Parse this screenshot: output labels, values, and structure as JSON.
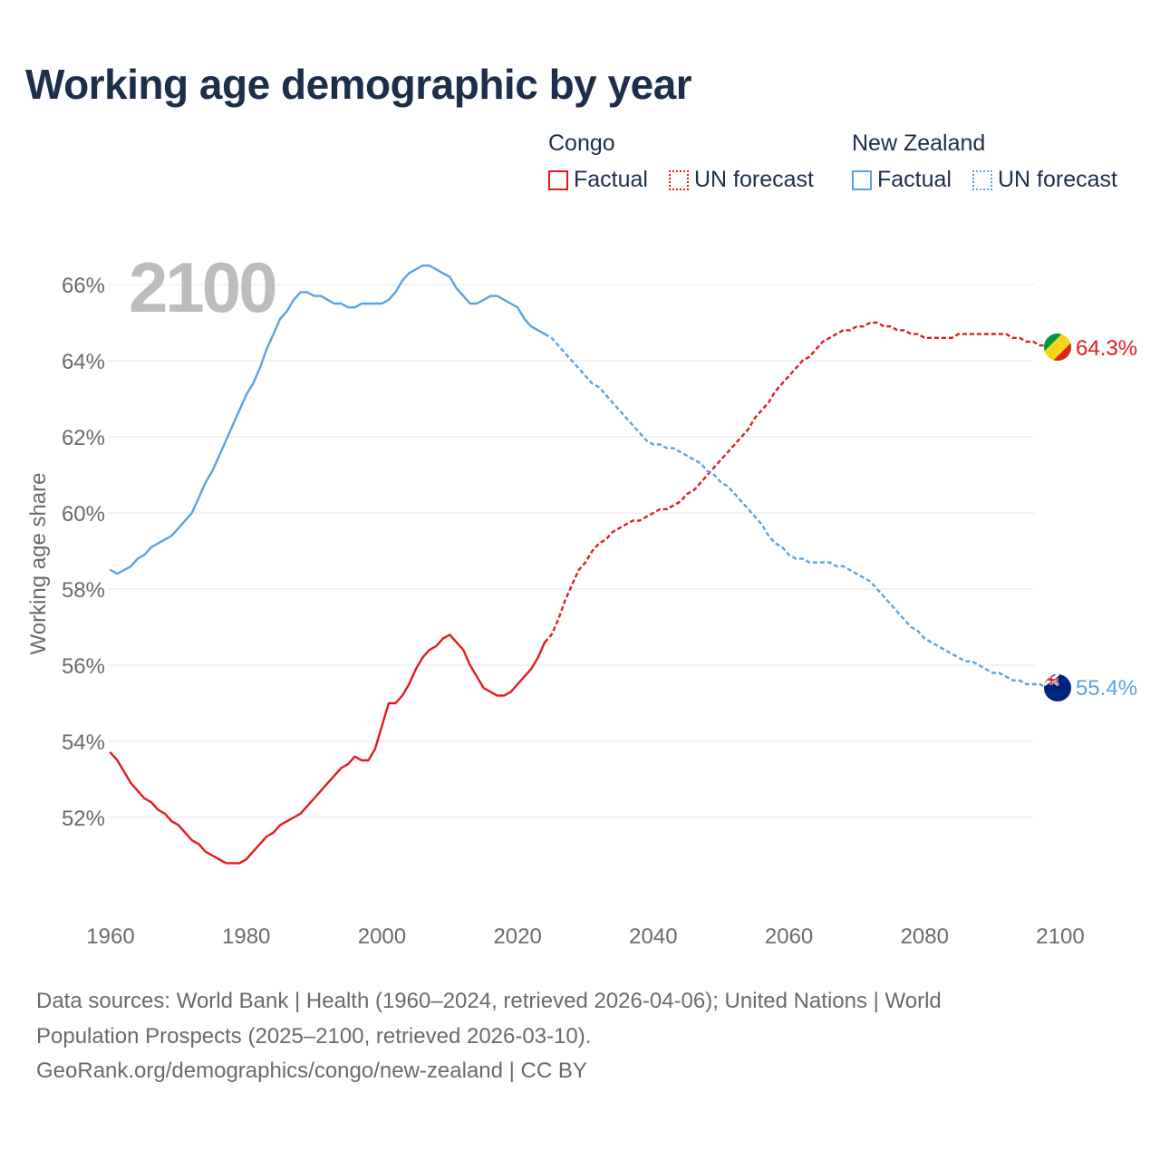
{
  "title": "Working age demographic by year",
  "legend": {
    "groups": [
      {
        "name": "Congo",
        "color": "#e31a1c",
        "items": [
          {
            "label": "Factual",
            "style": "solid"
          },
          {
            "label": "UN forecast",
            "style": "dotted"
          }
        ]
      },
      {
        "name": "New Zealand",
        "color": "#5aa3e0",
        "items": [
          {
            "label": "Factual",
            "style": "solid"
          },
          {
            "label": "UN forecast",
            "style": "dotted"
          }
        ]
      }
    ]
  },
  "year_label": "2100",
  "sources": {
    "line1": "Data sources: World Bank | Health (1960–2024, retrieved 2026-04-06); United Nations | World",
    "line2": "Population Prospects (2025–2100, retrieved 2026-03-10).",
    "line3": "GeoRank.org/demographics/congo/new-zealand | CC BY"
  },
  "chart_data": {
    "type": "line",
    "title": "Working age demographic by year",
    "xlabel": "",
    "ylabel": "Working age share",
    "xlim": [
      1960,
      2100
    ],
    "ylim": [
      50,
      67
    ],
    "x_ticks": [
      1960,
      1980,
      2000,
      2020,
      2040,
      2060,
      2080,
      2100
    ],
    "x_tick_labels": [
      "1960",
      "1980",
      "2000",
      "2020",
      "2040",
      "2060",
      "2080",
      "2100"
    ],
    "y_ticks": [
      52,
      54,
      56,
      58,
      60,
      62,
      64,
      66
    ],
    "y_tick_labels": [
      "52%",
      "54%",
      "56%",
      "58%",
      "60%",
      "62%",
      "64%",
      "66%"
    ],
    "grid": true,
    "factual_end_year": 2024,
    "series": [
      {
        "name": "Congo",
        "color": "#e31a1c",
        "end_label": "64.3%",
        "end_value": 64.3,
        "points": [
          [
            1960,
            53.7
          ],
          [
            1961,
            53.5
          ],
          [
            1962,
            53.2
          ],
          [
            1963,
            52.9
          ],
          [
            1964,
            52.7
          ],
          [
            1965,
            52.5
          ],
          [
            1966,
            52.4
          ],
          [
            1967,
            52.2
          ],
          [
            1968,
            52.1
          ],
          [
            1969,
            51.9
          ],
          [
            1970,
            51.8
          ],
          [
            1971,
            51.6
          ],
          [
            1972,
            51.4
          ],
          [
            1973,
            51.3
          ],
          [
            1974,
            51.1
          ],
          [
            1975,
            51.0
          ],
          [
            1976,
            50.9
          ],
          [
            1977,
            50.8
          ],
          [
            1978,
            50.8
          ],
          [
            1979,
            50.8
          ],
          [
            1980,
            50.9
          ],
          [
            1981,
            51.1
          ],
          [
            1982,
            51.3
          ],
          [
            1983,
            51.5
          ],
          [
            1984,
            51.6
          ],
          [
            1985,
            51.8
          ],
          [
            1986,
            51.9
          ],
          [
            1987,
            52.0
          ],
          [
            1988,
            52.1
          ],
          [
            1989,
            52.3
          ],
          [
            1990,
            52.5
          ],
          [
            1991,
            52.7
          ],
          [
            1992,
            52.9
          ],
          [
            1993,
            53.1
          ],
          [
            1994,
            53.3
          ],
          [
            1995,
            53.4
          ],
          [
            1996,
            53.6
          ],
          [
            1997,
            53.5
          ],
          [
            1998,
            53.5
          ],
          [
            1999,
            53.8
          ],
          [
            2000,
            54.4
          ],
          [
            2001,
            55.0
          ],
          [
            2002,
            55.0
          ],
          [
            2003,
            55.2
          ],
          [
            2004,
            55.5
          ],
          [
            2005,
            55.9
          ],
          [
            2006,
            56.2
          ],
          [
            2007,
            56.4
          ],
          [
            2008,
            56.5
          ],
          [
            2009,
            56.7
          ],
          [
            2010,
            56.8
          ],
          [
            2011,
            56.6
          ],
          [
            2012,
            56.4
          ],
          [
            2013,
            56.0
          ],
          [
            2014,
            55.7
          ],
          [
            2015,
            55.4
          ],
          [
            2016,
            55.3
          ],
          [
            2017,
            55.2
          ],
          [
            2018,
            55.2
          ],
          [
            2019,
            55.3
          ],
          [
            2020,
            55.5
          ],
          [
            2021,
            55.7
          ],
          [
            2022,
            55.9
          ],
          [
            2023,
            56.2
          ],
          [
            2024,
            56.6
          ],
          [
            2025,
            56.8
          ],
          [
            2026,
            57.2
          ],
          [
            2027,
            57.7
          ],
          [
            2028,
            58.1
          ],
          [
            2029,
            58.5
          ],
          [
            2030,
            58.7
          ],
          [
            2031,
            59.0
          ],
          [
            2032,
            59.2
          ],
          [
            2033,
            59.3
          ],
          [
            2034,
            59.5
          ],
          [
            2035,
            59.6
          ],
          [
            2036,
            59.7
          ],
          [
            2037,
            59.8
          ],
          [
            2038,
            59.8
          ],
          [
            2039,
            59.9
          ],
          [
            2040,
            60.0
          ],
          [
            2041,
            60.1
          ],
          [
            2042,
            60.1
          ],
          [
            2043,
            60.2
          ],
          [
            2044,
            60.3
          ],
          [
            2045,
            60.5
          ],
          [
            2046,
            60.6
          ],
          [
            2047,
            60.8
          ],
          [
            2048,
            61.0
          ],
          [
            2049,
            61.2
          ],
          [
            2050,
            61.4
          ],
          [
            2051,
            61.6
          ],
          [
            2052,
            61.8
          ],
          [
            2053,
            62.0
          ],
          [
            2054,
            62.2
          ],
          [
            2055,
            62.5
          ],
          [
            2056,
            62.7
          ],
          [
            2057,
            62.9
          ],
          [
            2058,
            63.2
          ],
          [
            2059,
            63.4
          ],
          [
            2060,
            63.6
          ],
          [
            2061,
            63.8
          ],
          [
            2062,
            64.0
          ],
          [
            2063,
            64.1
          ],
          [
            2064,
            64.3
          ],
          [
            2065,
            64.5
          ],
          [
            2066,
            64.6
          ],
          [
            2067,
            64.7
          ],
          [
            2068,
            64.8
          ],
          [
            2069,
            64.8
          ],
          [
            2070,
            64.9
          ],
          [
            2071,
            64.9
          ],
          [
            2072,
            65.0
          ],
          [
            2073,
            65.0
          ],
          [
            2074,
            64.9
          ],
          [
            2075,
            64.9
          ],
          [
            2076,
            64.8
          ],
          [
            2077,
            64.8
          ],
          [
            2078,
            64.7
          ],
          [
            2079,
            64.7
          ],
          [
            2080,
            64.6
          ],
          [
            2081,
            64.6
          ],
          [
            2082,
            64.6
          ],
          [
            2083,
            64.6
          ],
          [
            2084,
            64.6
          ],
          [
            2085,
            64.7
          ],
          [
            2086,
            64.7
          ],
          [
            2087,
            64.7
          ],
          [
            2088,
            64.7
          ],
          [
            2089,
            64.7
          ],
          [
            2090,
            64.7
          ],
          [
            2091,
            64.7
          ],
          [
            2092,
            64.7
          ],
          [
            2093,
            64.6
          ],
          [
            2094,
            64.6
          ],
          [
            2095,
            64.5
          ],
          [
            2096,
            64.5
          ],
          [
            2097,
            64.4
          ],
          [
            2098,
            64.4
          ],
          [
            2099,
            64.3
          ],
          [
            2100,
            64.3
          ]
        ]
      },
      {
        "name": "New Zealand",
        "color": "#5aa3e0",
        "end_label": "55.4%",
        "end_value": 55.4,
        "points": [
          [
            1960,
            58.5
          ],
          [
            1961,
            58.4
          ],
          [
            1962,
            58.5
          ],
          [
            1963,
            58.6
          ],
          [
            1964,
            58.8
          ],
          [
            1965,
            58.9
          ],
          [
            1966,
            59.1
          ],
          [
            1967,
            59.2
          ],
          [
            1968,
            59.3
          ],
          [
            1969,
            59.4
          ],
          [
            1970,
            59.6
          ],
          [
            1971,
            59.8
          ],
          [
            1972,
            60.0
          ],
          [
            1973,
            60.4
          ],
          [
            1974,
            60.8
          ],
          [
            1975,
            61.1
          ],
          [
            1976,
            61.5
          ],
          [
            1977,
            61.9
          ],
          [
            1978,
            62.3
          ],
          [
            1979,
            62.7
          ],
          [
            1980,
            63.1
          ],
          [
            1981,
            63.4
          ],
          [
            1982,
            63.8
          ],
          [
            1983,
            64.3
          ],
          [
            1984,
            64.7
          ],
          [
            1985,
            65.1
          ],
          [
            1986,
            65.3
          ],
          [
            1987,
            65.6
          ],
          [
            1988,
            65.8
          ],
          [
            1989,
            65.8
          ],
          [
            1990,
            65.7
          ],
          [
            1991,
            65.7
          ],
          [
            1992,
            65.6
          ],
          [
            1993,
            65.5
          ],
          [
            1994,
            65.5
          ],
          [
            1995,
            65.4
          ],
          [
            1996,
            65.4
          ],
          [
            1997,
            65.5
          ],
          [
            1998,
            65.5
          ],
          [
            1999,
            65.5
          ],
          [
            2000,
            65.5
          ],
          [
            2001,
            65.6
          ],
          [
            2002,
            65.8
          ],
          [
            2003,
            66.1
          ],
          [
            2004,
            66.3
          ],
          [
            2005,
            66.4
          ],
          [
            2006,
            66.5
          ],
          [
            2007,
            66.5
          ],
          [
            2008,
            66.4
          ],
          [
            2009,
            66.3
          ],
          [
            2010,
            66.2
          ],
          [
            2011,
            65.9
          ],
          [
            2012,
            65.7
          ],
          [
            2013,
            65.5
          ],
          [
            2014,
            65.5
          ],
          [
            2015,
            65.6
          ],
          [
            2016,
            65.7
          ],
          [
            2017,
            65.7
          ],
          [
            2018,
            65.6
          ],
          [
            2019,
            65.5
          ],
          [
            2020,
            65.4
          ],
          [
            2021,
            65.1
          ],
          [
            2022,
            64.9
          ],
          [
            2023,
            64.8
          ],
          [
            2024,
            64.7
          ],
          [
            2025,
            64.6
          ],
          [
            2026,
            64.4
          ],
          [
            2027,
            64.2
          ],
          [
            2028,
            64.0
          ],
          [
            2029,
            63.8
          ],
          [
            2030,
            63.6
          ],
          [
            2031,
            63.4
          ],
          [
            2032,
            63.3
          ],
          [
            2033,
            63.1
          ],
          [
            2034,
            62.9
          ],
          [
            2035,
            62.7
          ],
          [
            2036,
            62.5
          ],
          [
            2037,
            62.3
          ],
          [
            2038,
            62.1
          ],
          [
            2039,
            61.9
          ],
          [
            2040,
            61.8
          ],
          [
            2041,
            61.8
          ],
          [
            2042,
            61.7
          ],
          [
            2043,
            61.7
          ],
          [
            2044,
            61.6
          ],
          [
            2045,
            61.5
          ],
          [
            2046,
            61.4
          ],
          [
            2047,
            61.3
          ],
          [
            2048,
            61.1
          ],
          [
            2049,
            61.0
          ],
          [
            2050,
            60.8
          ],
          [
            2051,
            60.7
          ],
          [
            2052,
            60.5
          ],
          [
            2053,
            60.3
          ],
          [
            2054,
            60.1
          ],
          [
            2055,
            59.9
          ],
          [
            2056,
            59.7
          ],
          [
            2057,
            59.4
          ],
          [
            2058,
            59.2
          ],
          [
            2059,
            59.1
          ],
          [
            2060,
            58.9
          ],
          [
            2061,
            58.8
          ],
          [
            2062,
            58.8
          ],
          [
            2063,
            58.7
          ],
          [
            2064,
            58.7
          ],
          [
            2065,
            58.7
          ],
          [
            2066,
            58.7
          ],
          [
            2067,
            58.6
          ],
          [
            2068,
            58.6
          ],
          [
            2069,
            58.5
          ],
          [
            2070,
            58.4
          ],
          [
            2071,
            58.3
          ],
          [
            2072,
            58.2
          ],
          [
            2073,
            58.0
          ],
          [
            2074,
            57.8
          ],
          [
            2075,
            57.6
          ],
          [
            2076,
            57.4
          ],
          [
            2077,
            57.2
          ],
          [
            2078,
            57.0
          ],
          [
            2079,
            56.9
          ],
          [
            2080,
            56.7
          ],
          [
            2081,
            56.6
          ],
          [
            2082,
            56.5
          ],
          [
            2083,
            56.4
          ],
          [
            2084,
            56.3
          ],
          [
            2085,
            56.2
          ],
          [
            2086,
            56.1
          ],
          [
            2087,
            56.1
          ],
          [
            2088,
            56.0
          ],
          [
            2089,
            55.9
          ],
          [
            2090,
            55.8
          ],
          [
            2091,
            55.8
          ],
          [
            2092,
            55.7
          ],
          [
            2093,
            55.6
          ],
          [
            2094,
            55.6
          ],
          [
            2095,
            55.5
          ],
          [
            2096,
            55.5
          ],
          [
            2097,
            55.5
          ],
          [
            2098,
            55.4
          ],
          [
            2099,
            55.4
          ],
          [
            2100,
            55.4
          ]
        ]
      }
    ]
  }
}
